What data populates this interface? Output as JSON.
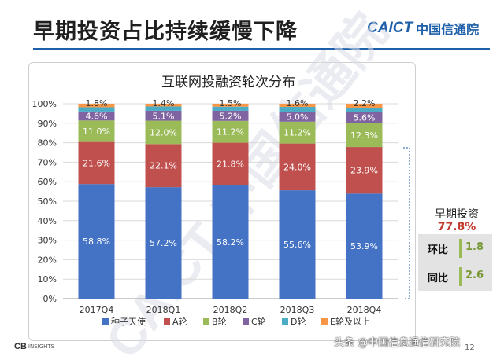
{
  "slide": {
    "title": "早期投资占比持续缓慢下降",
    "brand_en": "CAICT",
    "brand_cn": "中国信通院"
  },
  "watermark": {
    "text": "CAICT 中国信通院"
  },
  "side_panel": {
    "label": "早期投资",
    "value": "77.8%",
    "stats": [
      {
        "label": "环比",
        "value": "1.8"
      },
      {
        "label": "同比",
        "value": "2.6"
      }
    ]
  },
  "footer": {
    "logo_text": "CB",
    "logo_small": "INSIGHTS",
    "credit": "头条 @中国信息通信研究院",
    "page": "12"
  },
  "colors": {
    "seed": "#4472c4",
    "a": "#c0504d",
    "b": "#9bbb59",
    "c": "#8064a2",
    "d": "#4bacc6",
    "e": "#f79646",
    "accent": "#1d5fa8"
  },
  "chart_data": {
    "type": "bar",
    "stacked": true,
    "title": "互联网投融资轮次分布",
    "categories": [
      "2017Q4",
      "2018Q1",
      "2018Q2",
      "2018Q3",
      "2018Q4"
    ],
    "ylim": [
      0,
      100
    ],
    "yticks": [
      "0%",
      "10%",
      "20%",
      "30%",
      "40%",
      "50%",
      "60%",
      "70%",
      "80%",
      "90%",
      "100%"
    ],
    "legend_position": "bottom",
    "series": [
      {
        "name": "种子天使",
        "values": [
          58.8,
          57.2,
          58.2,
          55.6,
          53.9
        ],
        "labels": [
          "58.8%",
          "57.2%",
          "58.2%",
          "55.6%",
          "53.9%"
        ]
      },
      {
        "name": "A轮",
        "values": [
          21.6,
          22.1,
          21.8,
          24.0,
          23.9
        ],
        "labels": [
          "21.6%",
          "22.1%",
          "21.8%",
          "24.0%",
          "23.9%"
        ]
      },
      {
        "name": "B轮",
        "values": [
          11.0,
          12.0,
          11.2,
          11.2,
          12.3
        ],
        "labels": [
          "11.0%",
          "12.0%",
          "11.2%",
          "11.2%",
          "12.3%"
        ]
      },
      {
        "name": "C轮",
        "values": [
          4.6,
          5.1,
          5.2,
          5.0,
          5.6
        ],
        "labels": [
          "4.6%",
          "5.1%",
          "5.2%",
          "5.0%",
          "5.6%"
        ]
      },
      {
        "name": "D轮",
        "values": [
          2.2,
          2.2,
          2.1,
          2.6,
          2.1
        ],
        "labels": [
          "",
          "",
          "",
          "",
          ""
        ]
      },
      {
        "name": "E轮及以上",
        "values": [
          1.8,
          1.4,
          1.5,
          1.6,
          2.2
        ],
        "labels": [
          "1.8%",
          "1.4%",
          "1.5%",
          "1.6%",
          "2.2%"
        ]
      }
    ]
  }
}
